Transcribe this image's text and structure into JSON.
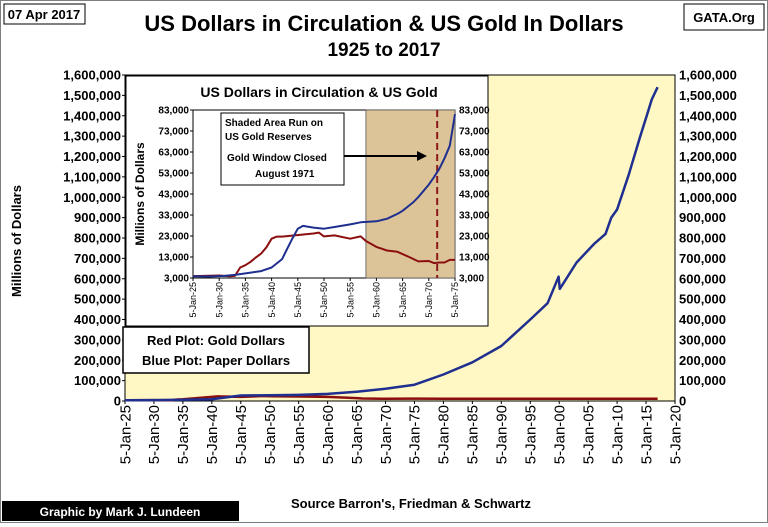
{
  "header": {
    "date": "07 Apr 2017",
    "source_tag": "GATA.Org",
    "credit": "Graphic by Mark J. Lundeen",
    "source": "Source Barron's,  Friedman & Schwartz"
  },
  "colors": {
    "gold": "#8b0f0f",
    "paper": "#1f2f8f",
    "plot_bg": "#fff7c4",
    "shade": "#dcc498",
    "window": "#8b1a1a"
  },
  "chart_data": [
    {
      "type": "line",
      "title": "US Dollars in Circulation & US Gold In Dollars",
      "subtitle": "1925 to 2017",
      "ylabel": "Millions  of  Dollars",
      "xlabel": "",
      "x_range": [
        "1925-01-05",
        "2020-01-05"
      ],
      "ylim": [
        0,
        1600000
      ],
      "grid": false,
      "y_ticks": [
        "0",
        "100,000",
        "200,000",
        "300,000",
        "400,000",
        "500,000",
        "600,000",
        "700,000",
        "800,000",
        "900,000",
        "1,000,000",
        "1,100,000",
        "1,200,000",
        "1,300,000",
        "1,400,000",
        "1,500,000",
        "1,600,000"
      ],
      "x_ticks": [
        "5-Jan-25",
        "5-Jan-30",
        "5-Jan-35",
        "5-Jan-40",
        "5-Jan-45",
        "5-Jan-50",
        "5-Jan-55",
        "5-Jan-60",
        "5-Jan-65",
        "5-Jan-70",
        "5-Jan-75",
        "5-Jan-80",
        "5-Jan-85",
        "5-Jan-90",
        "5-Jan-95",
        "5-Jan-00",
        "5-Jan-05",
        "5-Jan-10",
        "5-Jan-15",
        "5-Jan-20"
      ],
      "legend": [
        "Red Plot: Gold Dollars",
        "Blue Plot: Paper Dollars"
      ],
      "series": [
        {
          "name": "Paper Dollars",
          "x": [
            1925,
            1930,
            1935,
            1940,
            1945,
            1950,
            1955,
            1960,
            1965,
            1970,
            1975,
            1980,
            1985,
            1990,
            1995,
            1998,
            1999.9,
            2000.1,
            2003,
            2006,
            2008,
            2009,
            2010,
            2012,
            2014,
            2015,
            2016,
            2017
          ],
          "values": [
            4000,
            4500,
            6000,
            9000,
            27000,
            28000,
            30000,
            35000,
            45000,
            60000,
            80000,
            130000,
            190000,
            270000,
            400000,
            480000,
            610000,
            550000,
            680000,
            770000,
            820000,
            900000,
            940000,
            1110000,
            1300000,
            1390000,
            1480000,
            1540000
          ]
        },
        {
          "name": "Gold Dollars",
          "x": [
            1925,
            1930,
            1933,
            1934,
            1935,
            1940,
            1941,
            1945,
            1949,
            1950,
            1955,
            1960,
            1965,
            1966,
            1970,
            1975,
            1980,
            1985,
            1990,
            1995,
            2000,
            2005,
            2010,
            2015,
            2017
          ],
          "values": [
            4000,
            4200,
            4000,
            7500,
            9000,
            20000,
            22700,
            20000,
            24500,
            23000,
            22000,
            20000,
            14000,
            12500,
            11000,
            11600,
            11200,
            11100,
            11100,
            11100,
            11100,
            11100,
            11100,
            11100,
            11100
          ]
        }
      ]
    },
    {
      "type": "line",
      "title": "US Dollars in Circulation & US Gold",
      "ylabel": "Millions  of Dollars",
      "x_range": [
        "1925-01-05",
        "1975-01-05"
      ],
      "ylim": [
        3000,
        83000
      ],
      "y_ticks": [
        "3,000",
        "13,000",
        "23,000",
        "33,000",
        "43,000",
        "53,000",
        "63,000",
        "73,000",
        "83,000"
      ],
      "x_ticks": [
        "5-Jan-25",
        "5-Jan-30",
        "5-Jan-35",
        "5-Jan-40",
        "5-Jan-45",
        "5-Jan-50",
        "5-Jan-55",
        "5-Jan-60",
        "5-Jan-65",
        "5-Jan-70",
        "5-Jan-75"
      ],
      "shaded_range": [
        1958,
        1975
      ],
      "window_year": 1971.6,
      "annotations": {
        "shaded_note": "Shaded Area Run on US Gold Reserves",
        "window_note": "Gold Window Closed August 1971"
      },
      "series": [
        {
          "name": "Paper Dollars",
          "x": [
            1925,
            1928,
            1931,
            1933,
            1935,
            1938,
            1940,
            1942,
            1943,
            1944,
            1945,
            1946,
            1948,
            1950,
            1952,
            1955,
            1957,
            1960,
            1962,
            1964,
            1965,
            1966,
            1967,
            1968,
            1969,
            1970,
            1971,
            1972,
            1973,
            1974,
            1975
          ],
          "values": [
            3800,
            3700,
            4000,
            4500,
            5200,
            6300,
            8000,
            12000,
            17000,
            22000,
            26500,
            27800,
            27000,
            26500,
            27300,
            28500,
            29500,
            30000,
            31200,
            33500,
            35000,
            37000,
            39000,
            41500,
            44500,
            47500,
            51000,
            55000,
            60000,
            66000,
            81000
          ]
        },
        {
          "name": "Gold Dollars",
          "x": [
            1925,
            1930,
            1932,
            1933,
            1934,
            1935,
            1936,
            1937,
            1938,
            1939,
            1940,
            1941,
            1941.99,
            1948,
            1949,
            1950,
            1952,
            1955,
            1957,
            1958,
            1960,
            1962,
            1964,
            1966,
            1968,
            1970,
            1971,
            1972,
            1973,
            1974,
            1975
          ],
          "values": [
            3900,
            4200,
            3800,
            4000,
            8000,
            9100,
            10700,
            12800,
            14600,
            17600,
            21700,
            22700,
            22700,
            24200,
            24600,
            22800,
            23300,
            21700,
            22800,
            20600,
            17800,
            16100,
            15500,
            13300,
            10900,
            11100,
            10100,
            10400,
            10400,
            11600,
            11600
          ]
        }
      ]
    }
  ]
}
